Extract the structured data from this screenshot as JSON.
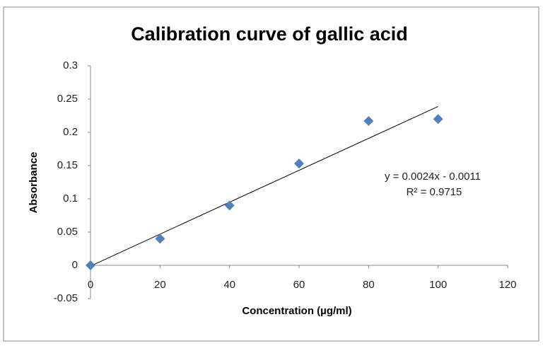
{
  "chart_data": {
    "type": "scatter",
    "title": "Calibration curve of gallic acid",
    "x_label": "Concentration (µg/ml)",
    "y_label": "Absorbance",
    "series": [
      {
        "name": "Absorbance",
        "color": "#4f81bd",
        "x": [
          0,
          20,
          40,
          60,
          80,
          100
        ],
        "values": [
          0,
          0.04,
          0.09,
          0.153,
          0.217,
          0.22
        ]
      }
    ],
    "fit": {
      "slope": 0.0024,
      "intercept": -0.0011
    },
    "annotations": [
      "y = 0.0024x - 0.0011",
      "R² = 0.9715"
    ],
    "xlim": [
      0,
      120
    ],
    "xticks": [
      0,
      20,
      40,
      60,
      80,
      100,
      120
    ],
    "ylim": [
      -0.05,
      0.3
    ],
    "yticks": [
      -0.05,
      0,
      0.05,
      0.1,
      0.15,
      0.2,
      0.25,
      0.3
    ],
    "grid": false
  }
}
